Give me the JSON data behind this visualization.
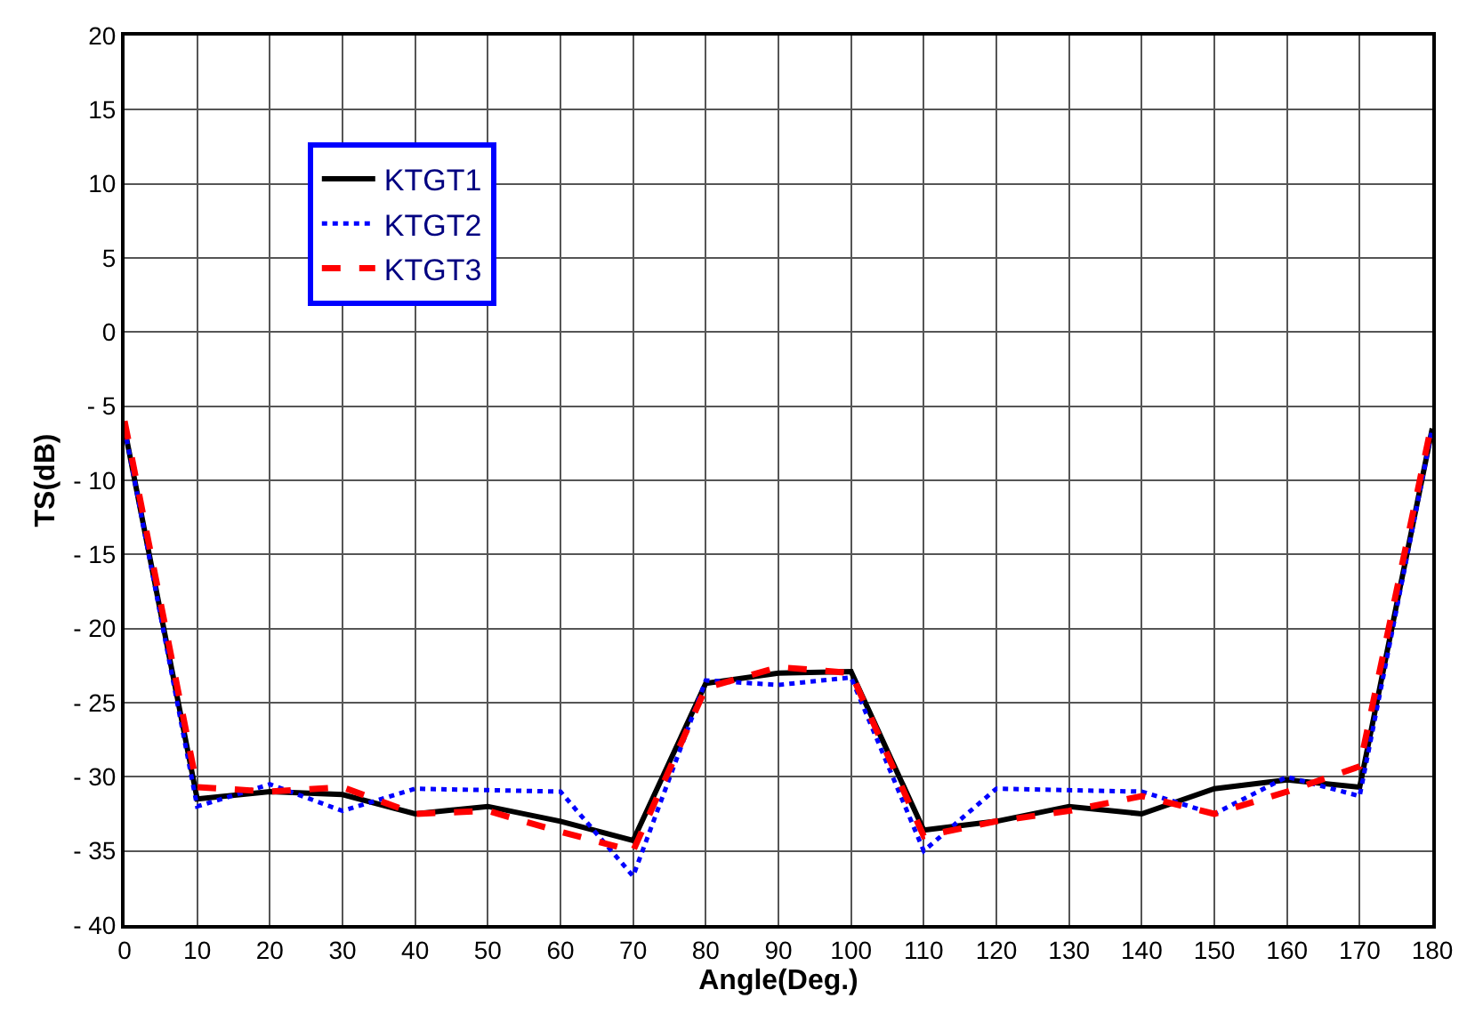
{
  "chart_data": {
    "type": "line",
    "xlabel": "Angle(Deg.)",
    "ylabel": "TS(dB)",
    "xlim": [
      0,
      180
    ],
    "xticks": [
      0,
      10,
      20,
      30,
      40,
      50,
      60,
      70,
      80,
      90,
      100,
      110,
      120,
      130,
      140,
      150,
      160,
      170,
      180
    ],
    "ylim": [
      -40,
      20
    ],
    "yticks": [
      {
        "value": -40,
        "label": "- 40"
      },
      {
        "value": -35,
        "label": "- 35"
      },
      {
        "value": -30,
        "label": "- 30"
      },
      {
        "value": -25,
        "label": "- 25"
      },
      {
        "value": -20,
        "label": "- 20"
      },
      {
        "value": -15,
        "label": "- 15"
      },
      {
        "value": -10,
        "label": "- 10"
      },
      {
        "value": -5,
        "label": "- 5"
      },
      0,
      5,
      10,
      15,
      20
    ],
    "grid": true,
    "legend": "top left",
    "series": [
      {
        "name": "KTGT1",
        "color": "#000000",
        "line_style": "solid",
        "x": [
          0,
          10,
          20,
          30,
          40,
          50,
          60,
          70,
          80,
          90,
          100,
          110,
          120,
          130,
          140,
          150,
          160,
          170,
          180
        ],
        "values": [
          -6.5,
          -31.5,
          -31,
          -31.2,
          -32.5,
          -32,
          -33,
          -34.3,
          -23.7,
          -23,
          -22.9,
          -33.6,
          -33,
          -32,
          -32.5,
          -30.8,
          -30.2,
          -30.7,
          -6.5
        ]
      },
      {
        "name": "KTGT2",
        "color": "#0000ff",
        "line_style": "dotted",
        "x": [
          0,
          10,
          20,
          30,
          40,
          60,
          70,
          80,
          90,
          100,
          110,
          120,
          140,
          150,
          160,
          170,
          180
        ],
        "values": [
          -6.5,
          -32,
          -30.5,
          -32.3,
          -30.8,
          -31,
          -36.7,
          -23.5,
          -23.8,
          -23.3,
          -35,
          -30.8,
          -31,
          -32.5,
          -30,
          -31.3,
          -6.5
        ]
      },
      {
        "name": "KTGT3",
        "color": "#ff0000",
        "line_style": "dashed",
        "x": [
          0,
          10,
          20,
          30,
          40,
          50,
          60,
          70,
          80,
          90,
          100,
          110,
          120,
          130,
          140,
          150,
          160,
          170,
          180
        ],
        "values": [
          -6,
          -30.7,
          -31,
          -30.7,
          -32.5,
          -32.3,
          -33.7,
          -35,
          -24,
          -22.6,
          -23,
          -34,
          -33,
          -32.3,
          -31.3,
          -32.5,
          -31,
          -29.3,
          -6
        ]
      }
    ]
  }
}
